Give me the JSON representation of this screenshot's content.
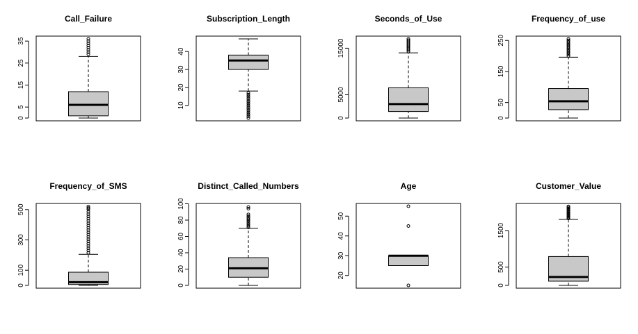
{
  "chart_data": [
    {
      "type": "boxplot",
      "title": "Call_Failure",
      "ylim": [
        0,
        36
      ],
      "yticks": [
        0,
        5,
        15,
        25,
        35
      ],
      "box": {
        "whisker_low": 0,
        "q1": 1,
        "median": 6,
        "q3": 12,
        "whisker_high": 28
      },
      "outliers": [
        29,
        30,
        31,
        32,
        33,
        34,
        35,
        36
      ]
    },
    {
      "type": "boxplot",
      "title": "Subscription_Length",
      "ylim": [
        3,
        47
      ],
      "yticks": [
        10,
        20,
        30,
        40
      ],
      "box": {
        "whisker_low": 18,
        "q1": 30,
        "median": 35,
        "q3": 38,
        "whisker_high": 47
      },
      "outliers": [
        3,
        4,
        5,
        6,
        7,
        8,
        9,
        10,
        11,
        12,
        13,
        14,
        15,
        16,
        17
      ]
    },
    {
      "type": "boxplot",
      "title": "Seconds_of_Use",
      "ylim": [
        0,
        17000
      ],
      "yticks": [
        0,
        5000,
        15000
      ],
      "box": {
        "whisker_low": 0,
        "q1": 1400,
        "median": 3000,
        "q3": 6500,
        "whisker_high": 14000
      },
      "outliers": [
        14300,
        14600,
        14900,
        15200,
        15500,
        15800,
        16100,
        16400,
        16700,
        17000
      ]
    },
    {
      "type": "boxplot",
      "title": "Frequency_of_use",
      "ylim": [
        0,
        255
      ],
      "yticks": [
        0,
        50,
        150,
        250
      ],
      "box": {
        "whisker_low": 0,
        "q1": 27,
        "median": 54,
        "q3": 95,
        "whisker_high": 196
      },
      "outliers": [
        200,
        205,
        210,
        215,
        220,
        225,
        230,
        235,
        240,
        245,
        250,
        255
      ]
    },
    {
      "type": "boxplot",
      "title": "Frequency_of_SMS",
      "ylim": [
        0,
        522
      ],
      "yticks": [
        0,
        100,
        300,
        500
      ],
      "box": {
        "whisker_low": 0,
        "q1": 6,
        "median": 21,
        "q3": 87,
        "whisker_high": 205
      },
      "outliers": [
        215,
        230,
        245,
        260,
        275,
        290,
        305,
        320,
        335,
        350,
        365,
        380,
        395,
        410,
        425,
        440,
        455,
        470,
        485,
        500,
        510,
        520
      ]
    },
    {
      "type": "boxplot",
      "title": "Distinct_Called_Numbers",
      "ylim": [
        0,
        97
      ],
      "yticks": [
        0,
        20,
        40,
        60,
        80,
        100
      ],
      "box": {
        "whisker_low": 0,
        "q1": 10,
        "median": 21,
        "q3": 34,
        "whisker_high": 70
      },
      "outliers": [
        71,
        73,
        75,
        77,
        79,
        81,
        83,
        85,
        87,
        94,
        96
      ]
    },
    {
      "type": "boxplot",
      "title": "Age",
      "ylim": [
        15,
        55
      ],
      "yticks": [
        20,
        30,
        40,
        50
      ],
      "box": {
        "whisker_low": 25,
        "q1": 25,
        "median": 30,
        "q3": 30,
        "whisker_high": 30
      },
      "outliers": [
        15,
        45,
        55
      ]
    },
    {
      "type": "boxplot",
      "title": "Customer_Value",
      "ylim": [
        0,
        2165
      ],
      "yticks": [
        0,
        500,
        1500
      ],
      "box": {
        "whisker_low": 0,
        "q1": 115,
        "median": 230,
        "q3": 790,
        "whisker_high": 1805
      },
      "outliers": [
        1830,
        1860,
        1890,
        1920,
        1950,
        1980,
        2010,
        2040,
        2070,
        2100,
        2130,
        2160
      ]
    }
  ]
}
